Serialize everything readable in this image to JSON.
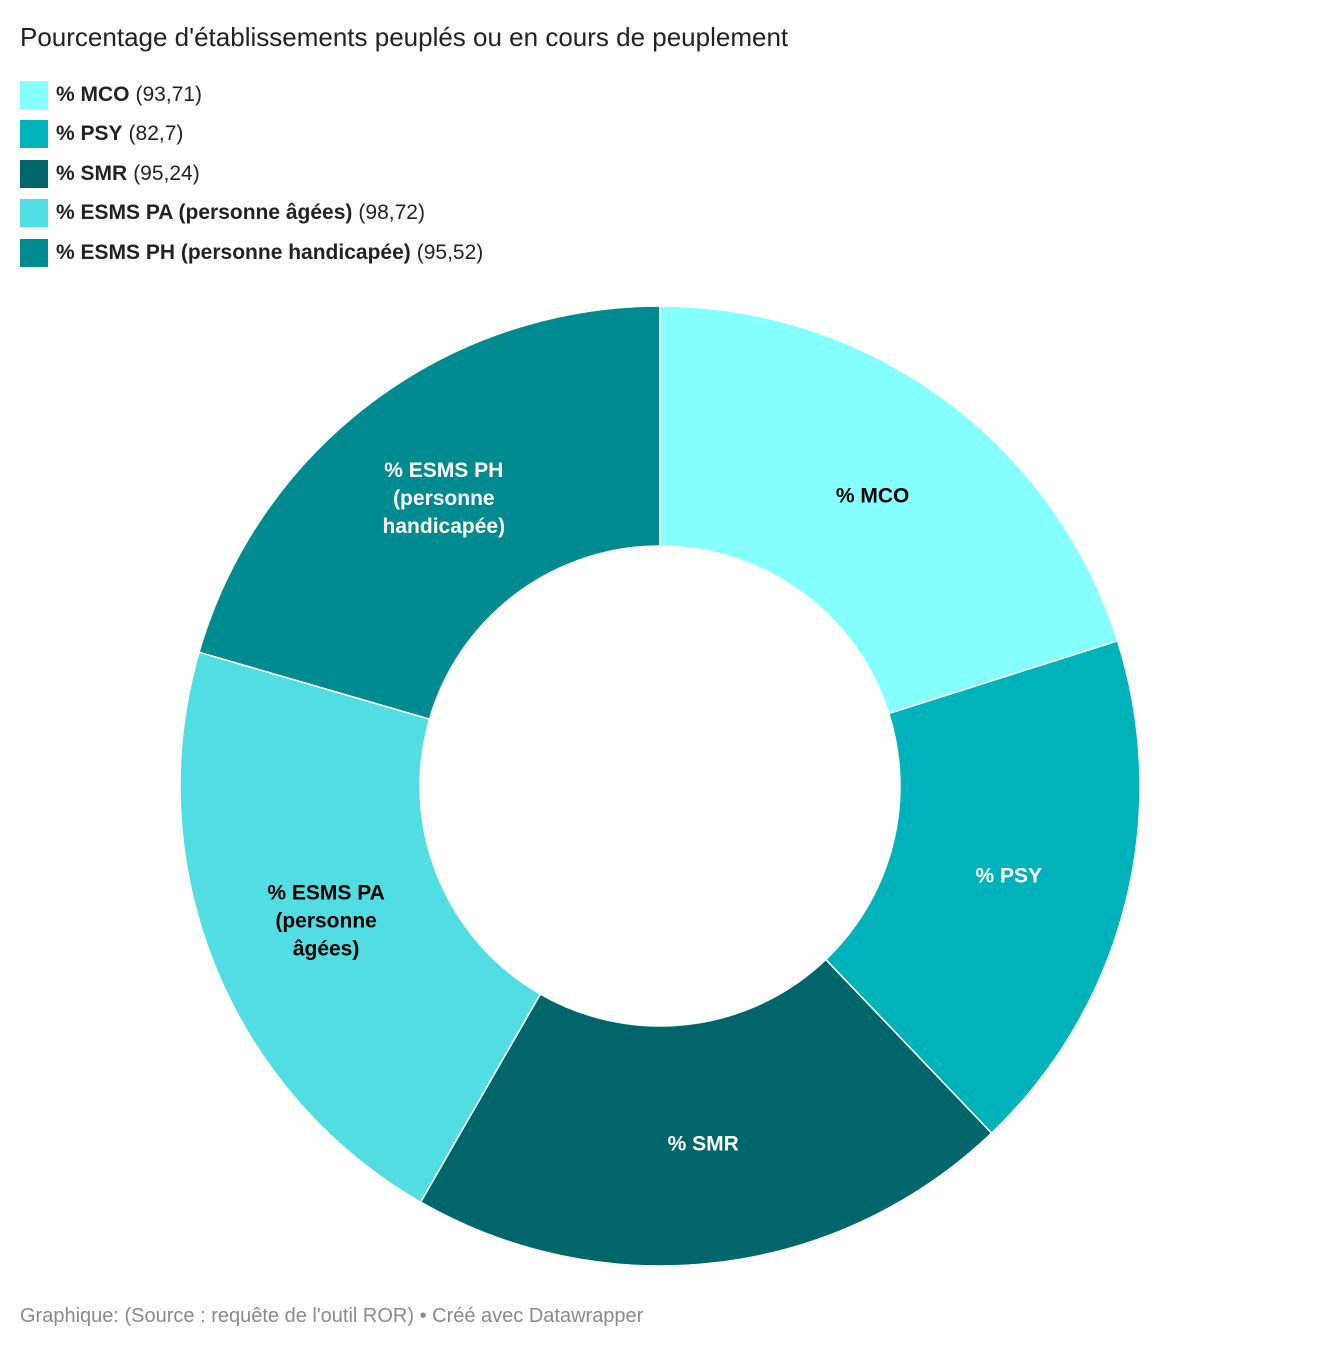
{
  "chart_data": {
    "type": "pie",
    "title": "Pourcentage d'établissements peuplés ou en cours de peuplement",
    "source": "Graphique: (Source : requête de l'outil ROR) • Créé avec Datawrapper",
    "legend_position": "top-left",
    "categories": [
      "% MCO",
      "% PSY",
      "% SMR",
      "% ESMS PA (personne âgées)",
      "% ESMS PH (personne handicapée)"
    ],
    "values": [
      93.71,
      82.7,
      95.24,
      98.72,
      95.52
    ],
    "value_labels": [
      "93,71",
      "82,7",
      "95,24",
      "98,72",
      "95,52"
    ],
    "slice_labels": [
      [
        "% MCO"
      ],
      [
        "% PSY"
      ],
      [
        "% SMR"
      ],
      [
        "% ESMS PA",
        "(personne",
        "âgées)"
      ],
      [
        "% ESMS PH",
        "(personne",
        "handicapée)"
      ]
    ],
    "colors": [
      "#85ffff",
      "#00b2b9",
      "#00666c",
      "#52dde3",
      "#008b90"
    ],
    "label_colors": [
      "#000000",
      "#ffffff",
      "#ffffff",
      "#000000",
      "#ffffff"
    ]
  }
}
